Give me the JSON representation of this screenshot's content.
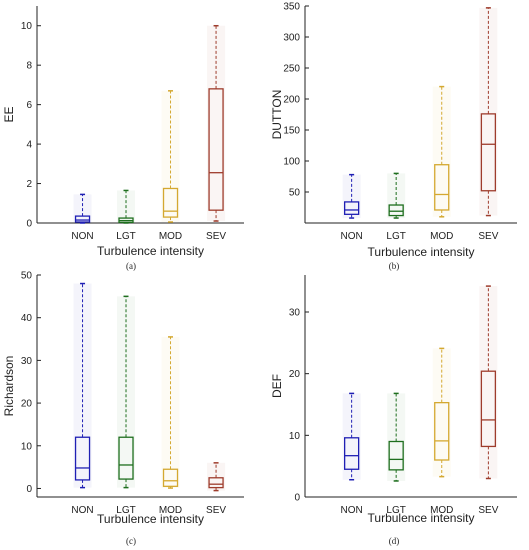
{
  "chart_data": [
    {
      "type": "box",
      "panel_label": "(a)",
      "xlabel": "Turbulence intensity",
      "ylabel": "EE",
      "ylim": [
        0,
        11
      ],
      "yticks": [
        "0",
        "2",
        "4",
        "6",
        "8",
        "10"
      ],
      "categories": [
        "NON",
        "LGT",
        "MOD",
        "SEV"
      ],
      "colors": [
        "#1f1fb4",
        "#1e6e1e",
        "#d4a830",
        "#9e3c2c"
      ],
      "boxes": [
        {
          "whisker_low": 0.0,
          "q1": 0.05,
          "median": 0.15,
          "q3": 0.35,
          "whisker_high": 1.45
        },
        {
          "whisker_low": 0.0,
          "q1": 0.03,
          "median": 0.12,
          "q3": 0.25,
          "whisker_high": 1.65
        },
        {
          "whisker_low": 0.05,
          "q1": 0.3,
          "median": 0.6,
          "q3": 1.75,
          "whisker_high": 6.7
        },
        {
          "whisker_low": 0.1,
          "q1": 0.65,
          "median": 2.55,
          "q3": 6.8,
          "whisker_high": 10.0
        }
      ]
    },
    {
      "type": "box",
      "panel_label": "(b)",
      "xlabel": "Turbulence intensity",
      "ylabel": "DUTTON",
      "ylim": [
        0,
        350
      ],
      "yticks": [
        "50",
        "100",
        "150",
        "200",
        "250",
        "300",
        "350"
      ],
      "categories": [
        "NON",
        "LGT",
        "MOD",
        "SEV"
      ],
      "colors": [
        "#1f1fb4",
        "#1e6e1e",
        "#d4a830",
        "#9e3c2c"
      ],
      "boxes": [
        {
          "whisker_low": 8,
          "q1": 14,
          "median": 21,
          "q3": 34,
          "whisker_high": 78
        },
        {
          "whisker_low": 8,
          "q1": 12,
          "median": 19,
          "q3": 29,
          "whisker_high": 80
        },
        {
          "whisker_low": 10,
          "q1": 21,
          "median": 46,
          "q3": 94,
          "whisker_high": 220
        },
        {
          "whisker_low": 12,
          "q1": 52,
          "median": 127,
          "q3": 176,
          "whisker_high": 347
        }
      ]
    },
    {
      "type": "box",
      "panel_label": "(c)",
      "xlabel": "Turbulence intensity",
      "ylabel": "Richardson",
      "ylim": [
        -2,
        50
      ],
      "yticks": [
        "0",
        "10",
        "20",
        "30",
        "40",
        "50"
      ],
      "categories": [
        "NON",
        "LGT",
        "MOD",
        "SEV"
      ],
      "colors": [
        "#1f1fb4",
        "#1e6e1e",
        "#d4a830",
        "#9e3c2c"
      ],
      "boxes": [
        {
          "whisker_low": 0.2,
          "q1": 2.0,
          "median": 4.8,
          "q3": 12.0,
          "whisker_high": 48
        },
        {
          "whisker_low": 0.2,
          "q1": 2.2,
          "median": 5.5,
          "q3": 12.0,
          "whisker_high": 45
        },
        {
          "whisker_low": 0.1,
          "q1": 0.5,
          "median": 1.8,
          "q3": 4.5,
          "whisker_high": 35.5
        },
        {
          "whisker_low": -0.5,
          "q1": 0.2,
          "median": 1.0,
          "q3": 2.5,
          "whisker_high": 6.0
        }
      ]
    },
    {
      "type": "box",
      "panel_label": "(d)",
      "xlabel": "Turbulence intensity",
      "ylabel": "DEF",
      "ylim": [
        0,
        36
      ],
      "yticks": [
        "0",
        "10",
        "20",
        "30"
      ],
      "categories": [
        "NON",
        "LGT",
        "MOD",
        "SEV"
      ],
      "colors": [
        "#1f1fb4",
        "#1e6e1e",
        "#d4a830",
        "#9e3c2c"
      ],
      "boxes": [
        {
          "whisker_low": 2.8,
          "q1": 4.5,
          "median": 6.7,
          "q3": 9.6,
          "whisker_high": 16.8
        },
        {
          "whisker_low": 2.6,
          "q1": 4.4,
          "median": 6.1,
          "q3": 9.0,
          "whisker_high": 16.8
        },
        {
          "whisker_low": 3.3,
          "q1": 6.0,
          "median": 9.1,
          "q3": 15.3,
          "whisker_high": 24.1
        },
        {
          "whisker_low": 3.0,
          "q1": 8.2,
          "median": 12.5,
          "q3": 20.4,
          "whisker_high": 34.2
        }
      ]
    }
  ]
}
